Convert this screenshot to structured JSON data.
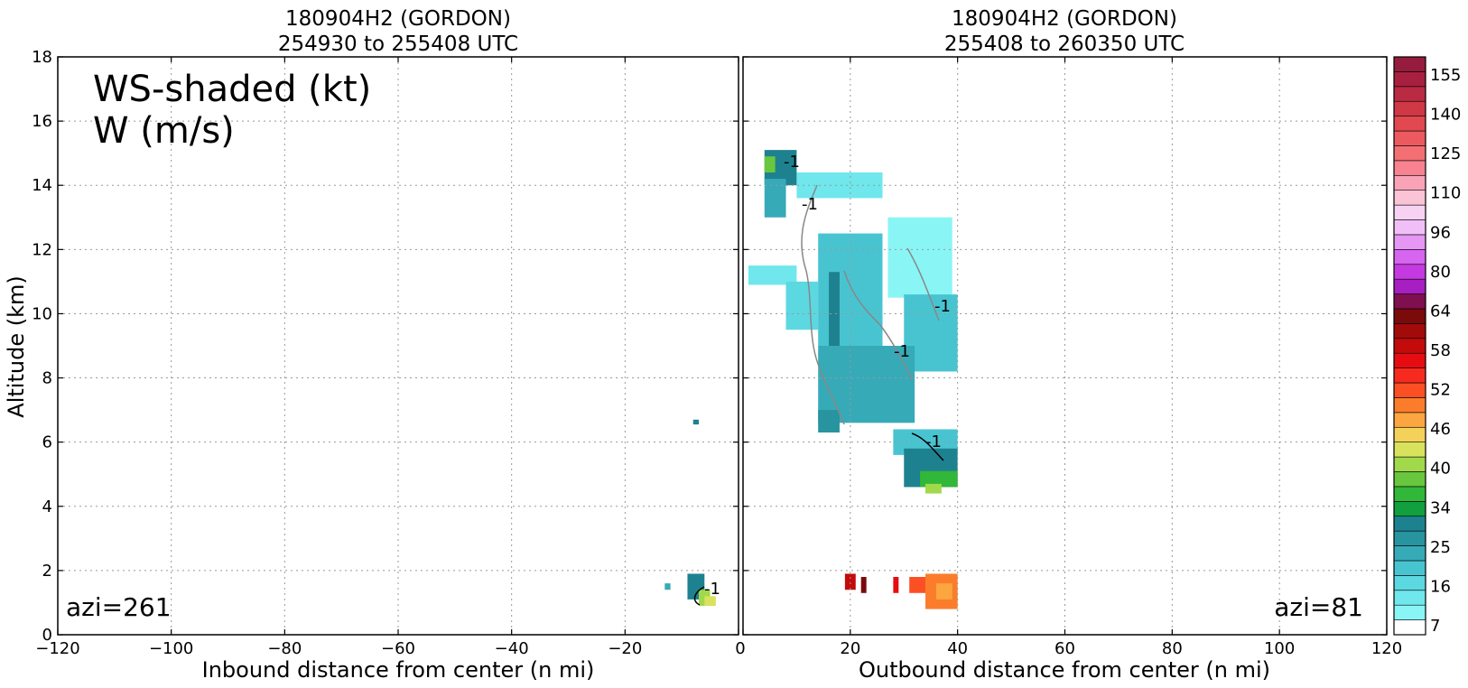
{
  "panels": [
    {
      "title_line1": "180904H2 (GORDON)",
      "title_line2": "254930 to 255408 UTC",
      "xlabel": "Inbound distance from center (n mi)",
      "azi_label": "azi=261",
      "xlim": [
        -120,
        0
      ],
      "x_ticks": [
        "−120",
        "−100",
        "−80",
        "−60",
        "−40",
        "−20",
        "0"
      ]
    },
    {
      "title_line1": "180904H2 (GORDON)",
      "title_line2": "255408 to 260350 UTC",
      "xlabel": "Outbound distance from center (n mi)",
      "azi_label": "azi=81",
      "xlim": [
        0,
        120
      ],
      "x_ticks": [
        "0",
        "20",
        "40",
        "60",
        "80",
        "100",
        "120"
      ]
    }
  ],
  "ylabel": "Altitude (km)",
  "y_ticks": [
    "0",
    "2",
    "4",
    "6",
    "8",
    "10",
    "12",
    "14",
    "16",
    "18"
  ],
  "legend_line1": "WS-shaded (kt)",
  "legend_line2": "W (m/s)",
  "colorbar_labels": [
    "7",
    "16",
    "25",
    "34",
    "40",
    "46",
    "52",
    "58",
    "64",
    "80",
    "96",
    "110",
    "125",
    "140",
    "155"
  ],
  "contour_label": "-1",
  "chart_data": {
    "type": "heatmap",
    "ylim": [
      0,
      18
    ],
    "grid": true,
    "colorbar": {
      "bins": [
        "#ffffff",
        "#8af5f5",
        "#6fe7ec",
        "#5cd8e1",
        "#48c4d1",
        "#37aab8",
        "#28949f",
        "#1e8190",
        "#129f3f",
        "#31b739",
        "#68c73e",
        "#a1d94a",
        "#d8e25d",
        "#f4d25a",
        "#fba640",
        "#fb7d2c",
        "#fb4f24",
        "#f72a1f",
        "#e60d12",
        "#c40b0b",
        "#a30a0a",
        "#7b0a0a",
        "#7f0f4e",
        "#a71fc0",
        "#c43ae0",
        "#d665ef",
        "#e696f3",
        "#f1bff7",
        "#f7d2f2",
        "#fac3d6",
        "#f9a3b8",
        "#f8828f",
        "#f36f73",
        "#ec5a5f",
        "#e1484f",
        "#cf3845",
        "#ba2a42",
        "#a8203f",
        "#951c3c"
      ]
    },
    "series": [
      {
        "panel": 0,
        "cells": [
          {
            "x0": -9,
            "x1": -6,
            "y0": 1.1,
            "y1": 1.9,
            "color": "#1e8190"
          },
          {
            "x0": -7,
            "x1": -5,
            "y0": 0.9,
            "y1": 1.4,
            "color": "#a1d94a"
          },
          {
            "x0": -6,
            "x1": -4,
            "y0": 0.9,
            "y1": 1.2,
            "color": "#d8e25d"
          },
          {
            "x0": -13,
            "x1": -12,
            "y0": 1.4,
            "y1": 1.6,
            "color": "#37aab8"
          },
          {
            "x0": -8,
            "x1": -7,
            "y0": 6.55,
            "y1": 6.7,
            "color": "#1e8190"
          }
        ]
      },
      {
        "panel": 1,
        "cells": [
          {
            "x0": 4,
            "x1": 10,
            "y0": 14.0,
            "y1": 15.1,
            "color": "#1e8190"
          },
          {
            "x0": 4,
            "x1": 6,
            "y0": 14.4,
            "y1": 14.9,
            "color": "#68c73e"
          },
          {
            "x0": 10,
            "x1": 26,
            "y0": 13.6,
            "y1": 14.4,
            "color": "#6fe7ec"
          },
          {
            "x0": 4,
            "x1": 8,
            "y0": 13.0,
            "y1": 14.2,
            "color": "#37aab8"
          },
          {
            "x0": 1,
            "x1": 10,
            "y0": 10.9,
            "y1": 11.5,
            "color": "#6fe7ec"
          },
          {
            "x0": 8,
            "x1": 14,
            "y0": 9.5,
            "y1": 11.0,
            "color": "#5cd8e1"
          },
          {
            "x0": 14,
            "x1": 26,
            "y0": 9.0,
            "y1": 12.5,
            "color": "#48c4d1"
          },
          {
            "x0": 16,
            "x1": 18,
            "y0": 8.8,
            "y1": 11.3,
            "color": "#1e8190"
          },
          {
            "x0": 27,
            "x1": 39,
            "y0": 10.5,
            "y1": 13.0,
            "color": "#8af5f5"
          },
          {
            "x0": 30,
            "x1": 40,
            "y0": 8.2,
            "y1": 10.6,
            "color": "#48c4d1"
          },
          {
            "x0": 14,
            "x1": 32,
            "y0": 6.6,
            "y1": 9.0,
            "color": "#37aab8"
          },
          {
            "x0": 14,
            "x1": 18,
            "y0": 6.3,
            "y1": 7.0,
            "color": "#28949f"
          },
          {
            "x0": 28,
            "x1": 40,
            "y0": 5.6,
            "y1": 6.4,
            "color": "#48c4d1"
          },
          {
            "x0": 30,
            "x1": 40,
            "y0": 4.6,
            "y1": 5.8,
            "color": "#1e8190"
          },
          {
            "x0": 33,
            "x1": 40,
            "y0": 4.6,
            "y1": 5.1,
            "color": "#31b739"
          },
          {
            "x0": 34,
            "x1": 37,
            "y0": 4.4,
            "y1": 4.7,
            "color": "#a1d94a"
          },
          {
            "x0": 19,
            "x1": 21,
            "y0": 1.4,
            "y1": 1.9,
            "color": "#c40b0b"
          },
          {
            "x0": 22,
            "x1": 23,
            "y0": 1.3,
            "y1": 1.8,
            "color": "#7b0a0a"
          },
          {
            "x0": 28,
            "x1": 29,
            "y0": 1.3,
            "y1": 1.8,
            "color": "#e60d12"
          },
          {
            "x0": 31,
            "x1": 34,
            "y0": 1.3,
            "y1": 1.8,
            "color": "#fb4f24"
          },
          {
            "x0": 34,
            "x1": 40,
            "y0": 0.8,
            "y1": 1.9,
            "color": "#fb7d2c"
          },
          {
            "x0": 36,
            "x1": 39,
            "y0": 1.1,
            "y1": 1.6,
            "color": "#fba640"
          }
        ]
      }
    ]
  }
}
